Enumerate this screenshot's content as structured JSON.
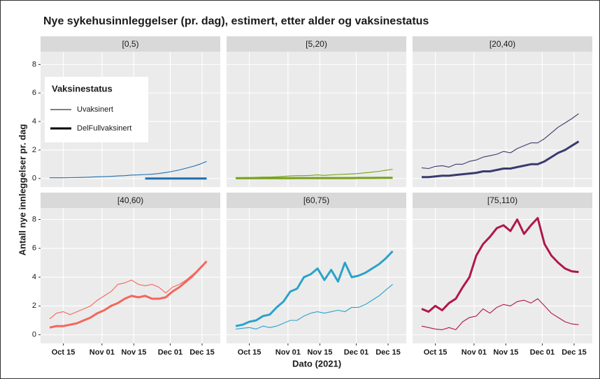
{
  "title": "Nye sykehusinnleggelser (pr. dag), estimert, etter alder og vaksinestatus",
  "xlabel": "Dato (2021)",
  "ylabel": "Antall nye innleggelser pr. dag",
  "legend_title": "Vaksinestatus",
  "chart_data": [
    {
      "type": "line",
      "title": "[0,5)",
      "x": [
        "2021-10-09",
        "2021-10-12",
        "2021-10-15",
        "2021-10-18",
        "2021-10-21",
        "2021-10-24",
        "2021-10-27",
        "2021-10-30",
        "2021-11-02",
        "2021-11-05",
        "2021-11-08",
        "2021-11-11",
        "2021-11-14",
        "2021-11-17",
        "2021-11-20",
        "2021-11-23",
        "2021-11-26",
        "2021-11-29",
        "2021-12-02",
        "2021-12-05",
        "2021-12-08",
        "2021-12-11",
        "2021-12-14",
        "2021-12-17"
      ],
      "ylim": [
        -0.6,
        8.9
      ],
      "yticks": [
        0,
        2,
        4,
        6,
        8
      ],
      "series": [
        {
          "name": "Uvaksinert",
          "color": "#1f6fb0",
          "values": [
            0.05,
            0.05,
            0.05,
            0.06,
            0.07,
            0.08,
            0.1,
            0.12,
            0.13,
            0.15,
            0.18,
            0.2,
            0.24,
            0.25,
            0.28,
            0.3,
            0.35,
            0.42,
            0.5,
            0.6,
            0.72,
            0.85,
            1.0,
            1.2
          ]
        },
        {
          "name": "DelFullvaksinert",
          "color": "#1f6fb0",
          "values": [
            null,
            null,
            null,
            null,
            null,
            null,
            null,
            null,
            null,
            null,
            null,
            null,
            null,
            null,
            0,
            0,
            0,
            0,
            0,
            0,
            0,
            0,
            0,
            0
          ]
        }
      ]
    },
    {
      "type": "line",
      "title": "[5,20)",
      "x": [
        "2021-10-09",
        "2021-10-12",
        "2021-10-15",
        "2021-10-18",
        "2021-10-21",
        "2021-10-24",
        "2021-10-27",
        "2021-10-30",
        "2021-11-02",
        "2021-11-05",
        "2021-11-08",
        "2021-11-11",
        "2021-11-14",
        "2021-11-17",
        "2021-11-20",
        "2021-11-23",
        "2021-11-26",
        "2021-11-29",
        "2021-12-02",
        "2021-12-05",
        "2021-12-08",
        "2021-12-11",
        "2021-12-14",
        "2021-12-17"
      ],
      "series": [
        {
          "name": "Uvaksinert",
          "color": "#76a219",
          "values": [
            0.05,
            0.06,
            0.07,
            0.08,
            0.1,
            0.1,
            0.12,
            0.15,
            0.18,
            0.2,
            0.2,
            0.22,
            0.25,
            0.22,
            0.25,
            0.28,
            0.3,
            0.32,
            0.35,
            0.4,
            0.45,
            0.5,
            0.58,
            0.65
          ]
        },
        {
          "name": "DelFullvaksinert",
          "color": "#76a219",
          "values": [
            0.02,
            0.02,
            0.02,
            0.02,
            0.02,
            0.02,
            0.02,
            0.02,
            0.02,
            0.03,
            0.03,
            0.03,
            0.03,
            0.03,
            0.03,
            0.03,
            0.03,
            0.03,
            0.04,
            0.04,
            0.04,
            0.05,
            0.05,
            0.05
          ]
        }
      ]
    },
    {
      "type": "line",
      "title": "[20,40)",
      "x": [
        "2021-10-09",
        "2021-10-12",
        "2021-10-15",
        "2021-10-18",
        "2021-10-21",
        "2021-10-24",
        "2021-10-27",
        "2021-10-30",
        "2021-11-02",
        "2021-11-05",
        "2021-11-08",
        "2021-11-11",
        "2021-11-14",
        "2021-11-17",
        "2021-11-20",
        "2021-11-23",
        "2021-11-26",
        "2021-11-29",
        "2021-12-02",
        "2021-12-05",
        "2021-12-08",
        "2021-12-11",
        "2021-12-14",
        "2021-12-17"
      ],
      "series": [
        {
          "name": "Uvaksinert",
          "color": "#3a3a6e",
          "values": [
            0.75,
            0.7,
            0.85,
            0.9,
            0.8,
            1.0,
            1.0,
            1.2,
            1.3,
            1.5,
            1.6,
            1.7,
            1.9,
            1.8,
            2.1,
            2.3,
            2.5,
            2.5,
            2.8,
            3.2,
            3.6,
            3.9,
            4.2,
            4.55
          ]
        },
        {
          "name": "DelFullvaksinert",
          "color": "#3a3a6e",
          "values": [
            0.1,
            0.1,
            0.15,
            0.2,
            0.2,
            0.25,
            0.3,
            0.35,
            0.4,
            0.5,
            0.5,
            0.6,
            0.7,
            0.7,
            0.8,
            0.9,
            1.0,
            1.0,
            1.2,
            1.5,
            1.8,
            2.0,
            2.3,
            2.6
          ]
        }
      ]
    },
    {
      "type": "line",
      "title": "[40,60)",
      "x": [
        "2021-10-09",
        "2021-10-12",
        "2021-10-15",
        "2021-10-18",
        "2021-10-21",
        "2021-10-24",
        "2021-10-27",
        "2021-10-30",
        "2021-11-02",
        "2021-11-05",
        "2021-11-08",
        "2021-11-11",
        "2021-11-14",
        "2021-11-17",
        "2021-11-20",
        "2021-11-23",
        "2021-11-26",
        "2021-11-29",
        "2021-12-02",
        "2021-12-05",
        "2021-12-08",
        "2021-12-11",
        "2021-12-14",
        "2021-12-17"
      ],
      "ylim": [
        -0.6,
        8.8
      ],
      "yticks": [
        0,
        2,
        4,
        6,
        8
      ],
      "xlim": [
        "2021-10-05",
        "2021-12-23"
      ],
      "xticks": [
        {
          "value": "2021-10-15",
          "label": "Oct 15"
        },
        {
          "value": "2021-11-01",
          "label": "Nov 01"
        },
        {
          "value": "2021-11-15",
          "label": "Nov 15"
        },
        {
          "value": "2021-12-01",
          "label": "Dec 01"
        },
        {
          "value": "2021-12-15",
          "label": "Dec 15"
        }
      ],
      "series": [
        {
          "name": "Uvaksinert",
          "color": "#f4665c",
          "values": [
            1.1,
            1.5,
            1.6,
            1.4,
            1.6,
            1.8,
            2.0,
            2.4,
            2.7,
            3.0,
            3.5,
            3.6,
            3.8,
            3.5,
            3.4,
            3.5,
            3.3,
            2.9,
            3.3,
            3.5,
            3.8,
            4.2,
            4.6,
            5.1
          ]
        },
        {
          "name": "DelFullvaksinert",
          "color": "#f4665c",
          "values": [
            0.5,
            0.6,
            0.6,
            0.7,
            0.8,
            1.0,
            1.2,
            1.5,
            1.7,
            2.0,
            2.2,
            2.5,
            2.7,
            2.6,
            2.7,
            2.5,
            2.5,
            2.6,
            3.0,
            3.3,
            3.7,
            4.1,
            4.6,
            5.1
          ]
        }
      ]
    },
    {
      "type": "line",
      "title": "[60,75)",
      "x": [
        "2021-10-09",
        "2021-10-12",
        "2021-10-15",
        "2021-10-18",
        "2021-10-21",
        "2021-10-24",
        "2021-10-27",
        "2021-10-30",
        "2021-11-02",
        "2021-11-05",
        "2021-11-08",
        "2021-11-11",
        "2021-11-14",
        "2021-11-17",
        "2021-11-20",
        "2021-11-23",
        "2021-11-26",
        "2021-11-29",
        "2021-12-02",
        "2021-12-05",
        "2021-12-08",
        "2021-12-11",
        "2021-12-14",
        "2021-12-17"
      ],
      "xlim": [
        "2021-10-05",
        "2021-12-23"
      ],
      "xticks": [
        {
          "value": "2021-10-15",
          "label": "Oct 15"
        },
        {
          "value": "2021-11-01",
          "label": "Nov 01"
        },
        {
          "value": "2021-11-15",
          "label": "Nov 15"
        },
        {
          "value": "2021-12-01",
          "label": "Dec 01"
        },
        {
          "value": "2021-12-15",
          "label": "Dec 15"
        }
      ],
      "series": [
        {
          "name": "Uvaksinert",
          "color": "#2ba3c8",
          "values": [
            0.4,
            0.45,
            0.5,
            0.4,
            0.6,
            0.5,
            0.6,
            0.8,
            1.0,
            1.0,
            1.3,
            1.5,
            1.6,
            1.5,
            1.6,
            1.7,
            1.6,
            1.9,
            1.9,
            2.1,
            2.4,
            2.7,
            3.1,
            3.5
          ]
        },
        {
          "name": "DelFullvaksinert",
          "color": "#2ba3c8",
          "values": [
            0.6,
            0.7,
            0.9,
            1.0,
            1.3,
            1.4,
            1.9,
            2.3,
            3.0,
            3.2,
            4.0,
            4.2,
            4.6,
            3.8,
            4.5,
            3.7,
            5.0,
            4.0,
            4.1,
            4.3,
            4.6,
            4.9,
            5.3,
            5.8
          ]
        }
      ]
    },
    {
      "type": "line",
      "title": "[75,110)",
      "x": [
        "2021-10-09",
        "2021-10-12",
        "2021-10-15",
        "2021-10-18",
        "2021-10-21",
        "2021-10-24",
        "2021-10-27",
        "2021-10-30",
        "2021-11-02",
        "2021-11-05",
        "2021-11-08",
        "2021-11-11",
        "2021-11-14",
        "2021-11-17",
        "2021-11-20",
        "2021-11-23",
        "2021-11-26",
        "2021-11-29",
        "2021-12-02",
        "2021-12-05",
        "2021-12-08",
        "2021-12-11",
        "2021-12-14",
        "2021-12-17"
      ],
      "xlim": [
        "2021-10-05",
        "2021-12-23"
      ],
      "xticks": [
        {
          "value": "2021-10-15",
          "label": "Oct 15"
        },
        {
          "value": "2021-11-01",
          "label": "Nov 01"
        },
        {
          "value": "2021-11-15",
          "label": "Nov 15"
        },
        {
          "value": "2021-12-01",
          "label": "Dec 01"
        },
        {
          "value": "2021-12-15",
          "label": "Dec 15"
        }
      ],
      "series": [
        {
          "name": "Uvaksinert",
          "color": "#b0174a",
          "values": [
            0.6,
            0.5,
            0.4,
            0.35,
            0.5,
            0.35,
            0.9,
            1.2,
            1.3,
            1.8,
            1.5,
            1.9,
            2.1,
            2.0,
            2.3,
            2.4,
            2.2,
            2.5,
            2.0,
            1.5,
            1.2,
            0.9,
            0.75,
            0.7
          ]
        },
        {
          "name": "DelFullvaksinert",
          "color": "#b0174a",
          "values": [
            1.8,
            1.6,
            2.0,
            1.7,
            2.2,
            2.5,
            3.3,
            4.0,
            5.5,
            6.3,
            6.8,
            7.4,
            7.6,
            7.2,
            8.0,
            7.0,
            7.6,
            8.1,
            6.3,
            5.5,
            5.0,
            4.6,
            4.4,
            4.35
          ]
        }
      ]
    }
  ]
}
